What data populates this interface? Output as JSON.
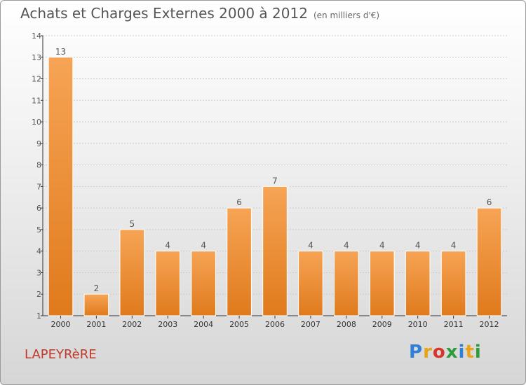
{
  "header": {
    "title": "Achats et Charges Externes 2000 à 2012",
    "subtitle": "(en milliers d'€)"
  },
  "footer": {
    "commune": "LAPEYRèRE",
    "logo_letters": [
      "P",
      "r",
      "o",
      "x",
      "i",
      "t",
      "i"
    ],
    "logo_colors": [
      "#2f7fd6",
      "#e8a317",
      "#d9342b",
      "#2c9b3a",
      "#2f7fd6",
      "#e8a317",
      "#2c9b3a"
    ]
  },
  "colors": {
    "bar_top": "#f6a455",
    "bar_bottom": "#e07a1c",
    "axis": "#333333",
    "grid": "#cccccc"
  },
  "chart_data": {
    "type": "bar",
    "categories": [
      "2000",
      "2001",
      "2002",
      "2003",
      "2004",
      "2005",
      "2006",
      "2007",
      "2008",
      "2009",
      "2010",
      "2011",
      "2012"
    ],
    "values": [
      13,
      2,
      5,
      4,
      4,
      6,
      7,
      4,
      4,
      4,
      4,
      4,
      6
    ],
    "ylim": [
      1,
      14
    ],
    "yticks": [
      1,
      2,
      3,
      4,
      5,
      6,
      7,
      8,
      9,
      10,
      11,
      12,
      13,
      14
    ],
    "grid": true
  }
}
